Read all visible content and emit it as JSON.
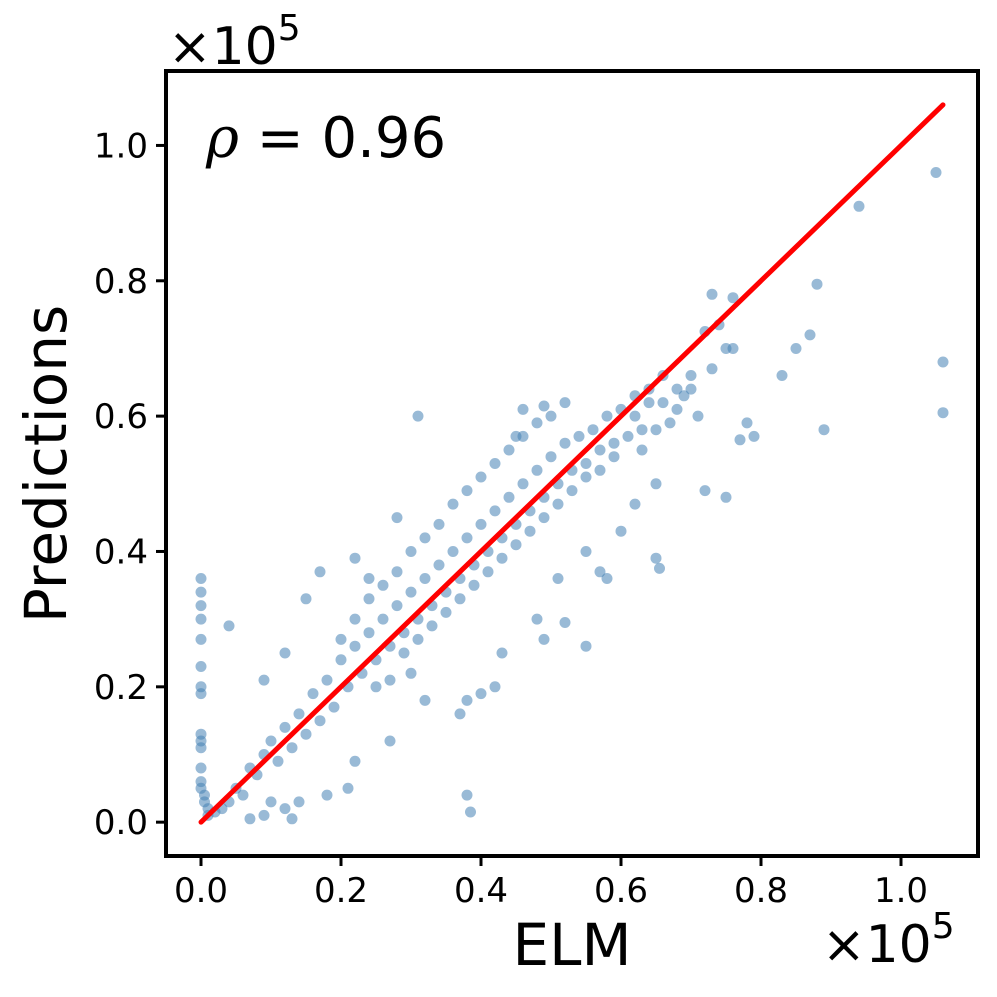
{
  "chart_data": {
    "type": "scatter",
    "xlabel": "ELM",
    "ylabel": "Predictions",
    "x_scale_label": "×10",
    "x_scale_exp": "5",
    "y_scale_label": "×10",
    "y_scale_exp": "5",
    "annotation": {
      "symbol": "ρ",
      "text": " = 0.96"
    },
    "xlim": [
      -0.05,
      1.11
    ],
    "ylim": [
      -0.05,
      1.11
    ],
    "x_ticks": [
      {
        "value": 0.0,
        "label": "0.0"
      },
      {
        "value": 0.2,
        "label": "0.2"
      },
      {
        "value": 0.4,
        "label": "0.4"
      },
      {
        "value": 0.6,
        "label": "0.6"
      },
      {
        "value": 0.8,
        "label": "0.8"
      },
      {
        "value": 1.0,
        "label": "1.0"
      }
    ],
    "y_ticks": [
      {
        "value": 0.0,
        "label": "0.0"
      },
      {
        "value": 0.2,
        "label": "0.2"
      },
      {
        "value": 0.4,
        "label": "0.4"
      },
      {
        "value": 0.6,
        "label": "0.6"
      },
      {
        "value": 0.8,
        "label": "0.8"
      },
      {
        "value": 1.0,
        "label": "1.0"
      }
    ],
    "grid": false,
    "point_color": "#4682b4",
    "point_opacity": 0.55,
    "fit_line_color": "#ff0000",
    "fit_line": {
      "x": [
        0.0,
        1.06
      ],
      "y": [
        0.0,
        1.06
      ]
    },
    "points": [
      [
        1.05,
        0.96
      ],
      [
        0.94,
        0.91
      ],
      [
        1.06,
        0.68
      ],
      [
        1.06,
        0.605
      ],
      [
        0.88,
        0.795
      ],
      [
        0.87,
        0.72
      ],
      [
        0.89,
        0.58
      ],
      [
        0.85,
        0.7
      ],
      [
        0.83,
        0.66
      ],
      [
        0.79,
        0.57
      ],
      [
        0.77,
        0.565
      ],
      [
        0.78,
        0.59
      ],
      [
        0.76,
        0.7
      ],
      [
        0.75,
        0.7
      ],
      [
        0.73,
        0.67
      ],
      [
        0.74,
        0.735
      ],
      [
        0.73,
        0.78
      ],
      [
        0.76,
        0.775
      ],
      [
        0.72,
        0.725
      ],
      [
        0.72,
        0.49
      ],
      [
        0.75,
        0.48
      ],
      [
        0.68,
        0.61
      ],
      [
        0.7,
        0.64
      ],
      [
        0.71,
        0.6
      ],
      [
        0.66,
        0.66
      ],
      [
        0.67,
        0.59
      ],
      [
        0.65,
        0.58
      ],
      [
        0.65,
        0.5
      ],
      [
        0.65,
        0.39
      ],
      [
        0.655,
        0.375
      ],
      [
        0.63,
        0.55
      ],
      [
        0.64,
        0.64
      ],
      [
        0.62,
        0.63
      ],
      [
        0.62,
        0.47
      ],
      [
        0.6,
        0.43
      ],
      [
        0.58,
        0.36
      ],
      [
        0.55,
        0.26
      ],
      [
        0.52,
        0.295
      ],
      [
        0.51,
        0.36
      ],
      [
        0.57,
        0.37
      ],
      [
        0.55,
        0.4
      ],
      [
        0.52,
        0.62
      ],
      [
        0.49,
        0.615
      ],
      [
        0.46,
        0.61
      ],
      [
        0.45,
        0.57
      ],
      [
        0.31,
        0.6
      ],
      [
        0.28,
        0.45
      ],
      [
        0.22,
        0.39
      ],
      [
        0.24,
        0.36
      ],
      [
        0.17,
        0.37
      ],
      [
        0.15,
        0.33
      ],
      [
        0.12,
        0.25
      ],
      [
        0.09,
        0.21
      ],
      [
        0.04,
        0.29
      ],
      [
        0.38,
        0.04
      ],
      [
        0.385,
        0.015
      ],
      [
        0.49,
        0.27
      ],
      [
        0.48,
        0.3
      ],
      [
        0.43,
        0.25
      ],
      [
        0.42,
        0.2
      ],
      [
        0.4,
        0.19
      ],
      [
        0.38,
        0.18
      ],
      [
        0.37,
        0.16
      ],
      [
        0.32,
        0.18
      ],
      [
        0.3,
        0.22
      ],
      [
        0.27,
        0.12
      ],
      [
        0.22,
        0.09
      ],
      [
        0.21,
        0.05
      ],
      [
        0.18,
        0.04
      ],
      [
        0.14,
        0.03
      ],
      [
        0.13,
        0.005
      ],
      [
        0.12,
        0.02
      ],
      [
        0.1,
        0.03
      ],
      [
        0.09,
        0.01
      ],
      [
        0.07,
        0.005
      ],
      [
        0.0,
        0.36
      ],
      [
        0.0,
        0.34
      ],
      [
        0.0,
        0.32
      ],
      [
        0.0,
        0.3
      ],
      [
        0.0,
        0.27
      ],
      [
        0.0,
        0.23
      ],
      [
        0.0,
        0.2
      ],
      [
        0.0,
        0.19
      ],
      [
        0.0,
        0.13
      ],
      [
        0.0,
        0.12
      ],
      [
        0.0,
        0.11
      ],
      [
        0.0,
        0.08
      ],
      [
        0.0,
        0.06
      ],
      [
        0.0,
        0.05
      ],
      [
        0.005,
        0.04
      ],
      [
        0.005,
        0.03
      ],
      [
        0.01,
        0.02
      ],
      [
        0.01,
        0.01
      ],
      [
        0.02,
        0.015
      ],
      [
        0.03,
        0.02
      ],
      [
        0.04,
        0.03
      ],
      [
        0.05,
        0.05
      ],
      [
        0.06,
        0.04
      ],
      [
        0.07,
        0.08
      ],
      [
        0.08,
        0.07
      ],
      [
        0.09,
        0.1
      ],
      [
        0.1,
        0.12
      ],
      [
        0.11,
        0.09
      ],
      [
        0.12,
        0.14
      ],
      [
        0.13,
        0.11
      ],
      [
        0.14,
        0.16
      ],
      [
        0.15,
        0.13
      ],
      [
        0.16,
        0.19
      ],
      [
        0.17,
        0.15
      ],
      [
        0.18,
        0.21
      ],
      [
        0.19,
        0.17
      ],
      [
        0.2,
        0.24
      ],
      [
        0.21,
        0.2
      ],
      [
        0.22,
        0.26
      ],
      [
        0.23,
        0.22
      ],
      [
        0.24,
        0.28
      ],
      [
        0.25,
        0.24
      ],
      [
        0.26,
        0.3
      ],
      [
        0.27,
        0.26
      ],
      [
        0.28,
        0.32
      ],
      [
        0.29,
        0.28
      ],
      [
        0.3,
        0.34
      ],
      [
        0.31,
        0.3
      ],
      [
        0.32,
        0.36
      ],
      [
        0.33,
        0.32
      ],
      [
        0.34,
        0.38
      ],
      [
        0.35,
        0.34
      ],
      [
        0.36,
        0.4
      ],
      [
        0.37,
        0.36
      ],
      [
        0.38,
        0.42
      ],
      [
        0.39,
        0.38
      ],
      [
        0.4,
        0.44
      ],
      [
        0.41,
        0.4
      ],
      [
        0.42,
        0.46
      ],
      [
        0.43,
        0.42
      ],
      [
        0.44,
        0.48
      ],
      [
        0.45,
        0.44
      ],
      [
        0.46,
        0.5
      ],
      [
        0.47,
        0.46
      ],
      [
        0.48,
        0.52
      ],
      [
        0.49,
        0.48
      ],
      [
        0.5,
        0.54
      ],
      [
        0.51,
        0.5
      ],
      [
        0.52,
        0.56
      ],
      [
        0.53,
        0.52
      ],
      [
        0.54,
        0.57
      ],
      [
        0.55,
        0.53
      ],
      [
        0.56,
        0.58
      ],
      [
        0.57,
        0.55
      ],
      [
        0.58,
        0.6
      ],
      [
        0.59,
        0.56
      ],
      [
        0.6,
        0.61
      ],
      [
        0.61,
        0.57
      ],
      [
        0.62,
        0.6
      ],
      [
        0.63,
        0.58
      ],
      [
        0.64,
        0.62
      ],
      [
        0.66,
        0.62
      ],
      [
        0.68,
        0.64
      ],
      [
        0.69,
        0.63
      ],
      [
        0.7,
        0.66
      ],
      [
        0.25,
        0.2
      ],
      [
        0.27,
        0.21
      ],
      [
        0.29,
        0.25
      ],
      [
        0.31,
        0.27
      ],
      [
        0.33,
        0.29
      ],
      [
        0.35,
        0.31
      ],
      [
        0.37,
        0.33
      ],
      [
        0.39,
        0.35
      ],
      [
        0.41,
        0.37
      ],
      [
        0.43,
        0.39
      ],
      [
        0.45,
        0.41
      ],
      [
        0.47,
        0.43
      ],
      [
        0.49,
        0.45
      ],
      [
        0.51,
        0.47
      ],
      [
        0.53,
        0.49
      ],
      [
        0.55,
        0.51
      ],
      [
        0.57,
        0.52
      ],
      [
        0.59,
        0.54
      ],
      [
        0.2,
        0.27
      ],
      [
        0.22,
        0.3
      ],
      [
        0.24,
        0.33
      ],
      [
        0.26,
        0.35
      ],
      [
        0.28,
        0.37
      ],
      [
        0.3,
        0.4
      ],
      [
        0.32,
        0.42
      ],
      [
        0.34,
        0.44
      ],
      [
        0.36,
        0.47
      ],
      [
        0.38,
        0.49
      ],
      [
        0.4,
        0.51
      ],
      [
        0.42,
        0.53
      ],
      [
        0.44,
        0.55
      ],
      [
        0.46,
        0.57
      ],
      [
        0.48,
        0.59
      ],
      [
        0.5,
        0.6
      ]
    ]
  }
}
